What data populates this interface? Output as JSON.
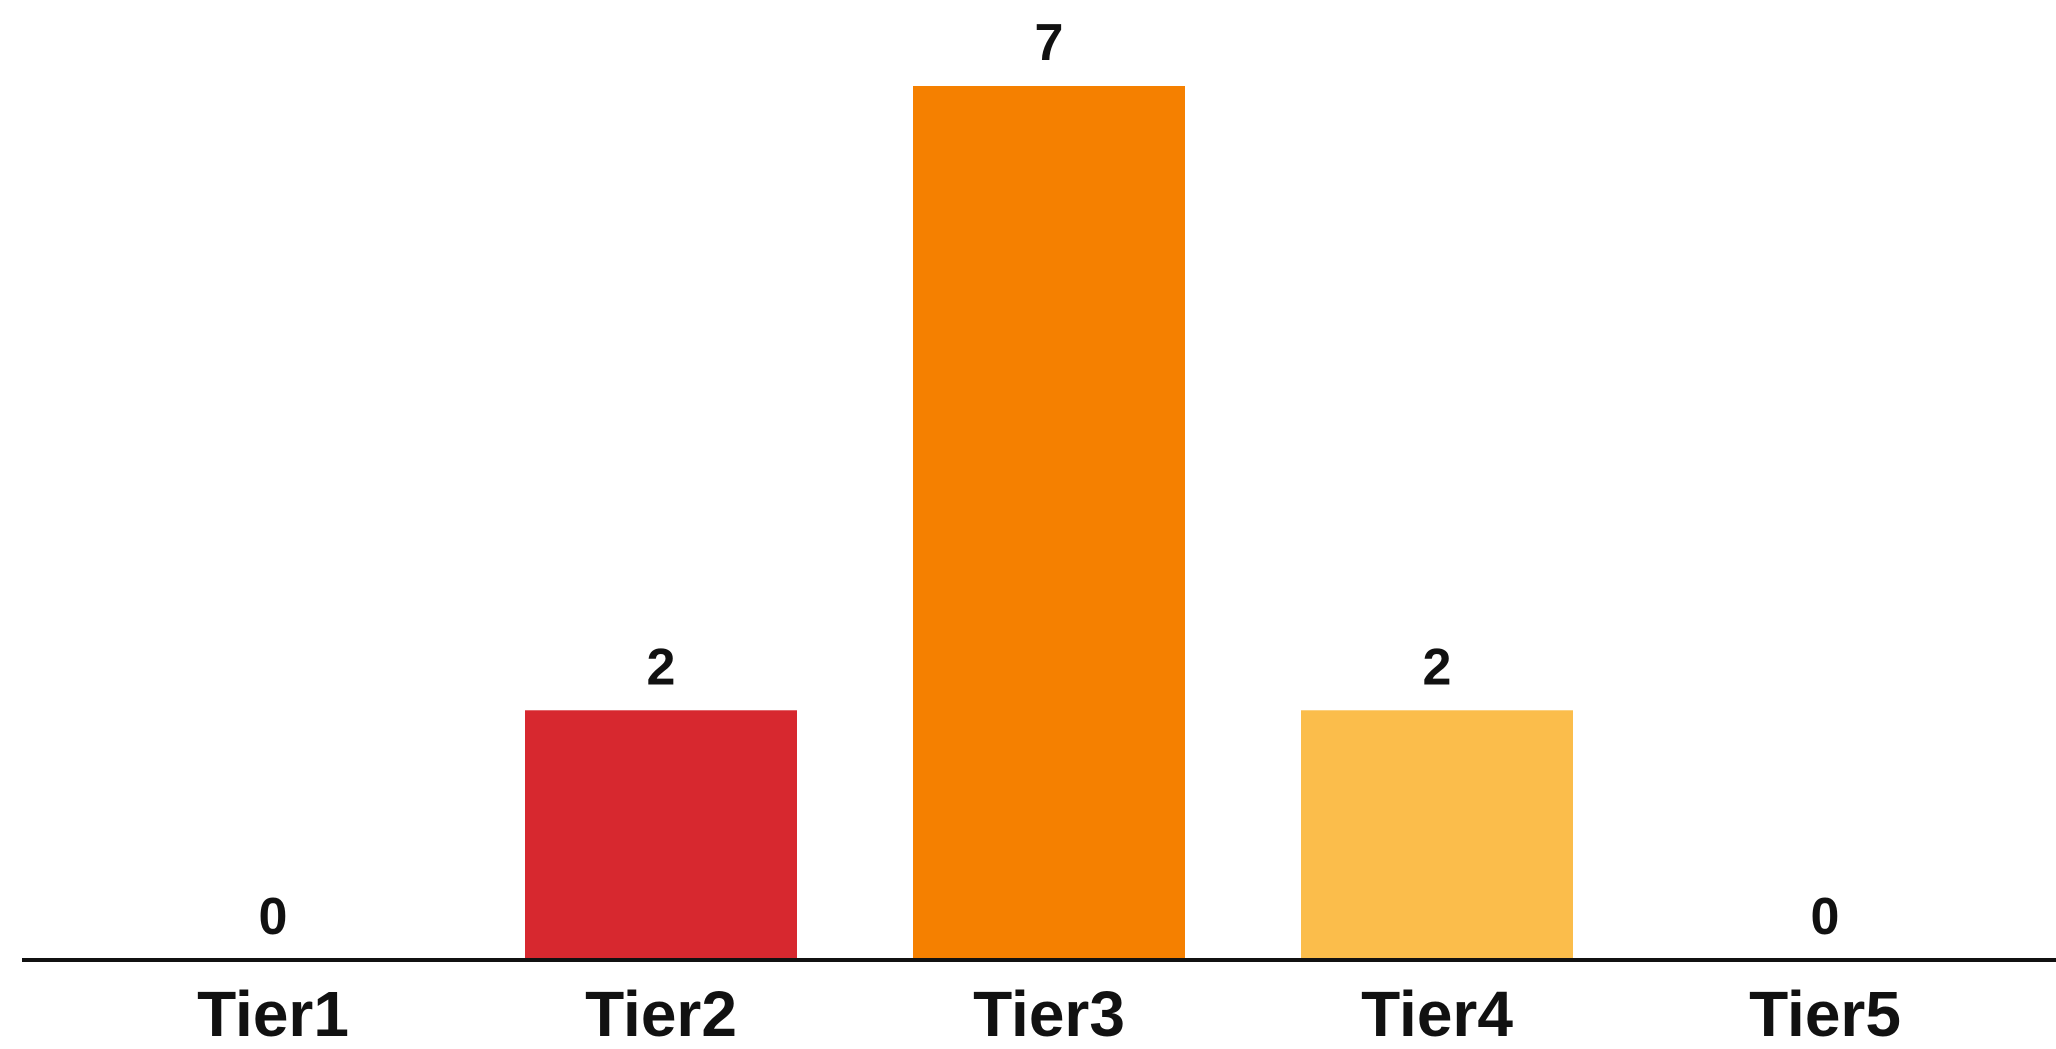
{
  "chart_data": {
    "type": "bar",
    "categories": [
      "Tier1",
      "Tier2",
      "Tier3",
      "Tier4",
      "Tier5"
    ],
    "values": [
      0,
      2,
      7,
      2,
      0
    ],
    "value_labels": [
      "0",
      "2",
      "7",
      "2",
      "0"
    ],
    "colors": [
      "#d7282f",
      "#d7282f",
      "#f58000",
      "#fbbd4b",
      "#fbbd4b"
    ],
    "title": "",
    "xlabel": "",
    "ylabel": "",
    "ylim": [
      0,
      7
    ],
    "grid": false,
    "legend": "none"
  }
}
